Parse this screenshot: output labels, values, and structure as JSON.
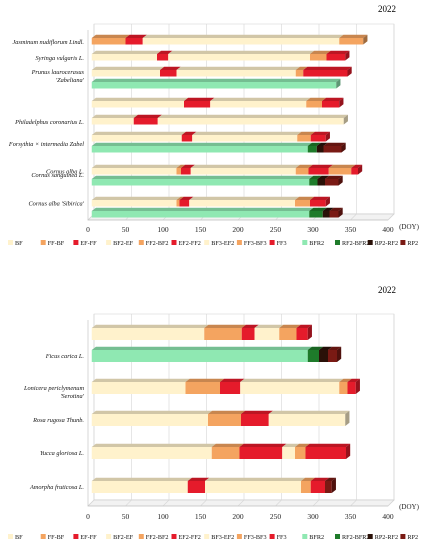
{
  "chart_data": [
    {
      "type": "bar",
      "orientation": "horizontal",
      "stacked": true,
      "year": "2022",
      "x_unit": "(DOY)",
      "xlim": [
        0,
        400
      ],
      "xticks": [
        0,
        50,
        100,
        150,
        200,
        250,
        300,
        350,
        400
      ],
      "grid": true,
      "legend_position": "bottom",
      "rows": [
        {
          "label": "Jasminum nudiflorum Lindl.",
          "lines": [
            "Jasminum nudiflorum Lindl."
          ],
          "segments": [
            [
              "FF-BF",
              5,
              50
            ],
            [
              "EF-FF",
              50,
              73
            ],
            [
              "BF2-EF",
              73,
              335
            ],
            [
              "FF2-BF2",
              335,
              367
            ]
          ]
        },
        {
          "label": "Syringa vulgaris L.",
          "lines": [
            "Syringa vulgaris L."
          ],
          "segments": [
            [
              "BF2-EF",
              5,
              92
            ],
            [
              "EF-FF",
              92,
              107
            ],
            [
              "BF2-EF",
              107,
              296
            ],
            [
              "FF2-BF2",
              296,
              318
            ],
            [
              "EF2-FF2",
              318,
              343
            ]
          ]
        },
        {
          "label": "Prunus laurocerasus 'Zabeliana'",
          "lines": [
            "Prunus laurocerasus",
            "'Zabeliana'"
          ],
          "segments": [
            [
              "BF2-EF",
              5,
              96
            ],
            [
              "EF-FF",
              96,
              118
            ],
            [
              "BF2-EF",
              118,
              277
            ],
            [
              "FF2-BF2",
              277,
              287
            ],
            [
              "EF2-FF2",
              287,
              346
            ]
          ]
        },
        {
          "label": "Prunus laurocerasus 'Zabeliana' BFR2",
          "lines": [],
          "segments": [
            [
              "BFR2",
              5,
              331
            ]
          ]
        },
        {
          "label": "Philadelphus coronarius L.",
          "lines": [
            "Philadelphus coronarius L."
          ],
          "segments": [
            [
              "BF2-EF",
              5,
              128
            ],
            [
              "EF-FF",
              128,
              163
            ],
            [
              "BF2-EF",
              163,
              291
            ],
            [
              "FF2-BF2",
              291,
              312
            ],
            [
              "EF2-FF2",
              312,
              335
            ]
          ]
        },
        {
          "label": "Forsythia × intermedia Zabel",
          "lines": [
            "Forsythia × intermedia Zabel"
          ],
          "segments": [
            [
              "BF2-EF",
              5,
              61
            ],
            [
              "EF-FF",
              61,
              93
            ],
            [
              "BF2-EF",
              93,
              341
            ]
          ]
        },
        {
          "label": "Cornus sanguinea L.",
          "lines": [
            "Cornus sanguinea L."
          ],
          "segments": [
            [
              "BF2-EF",
              5,
              125
            ],
            [
              "EF-FF",
              125,
              139
            ],
            [
              "BF2-EF",
              139,
              279
            ],
            [
              "FF2-BF2",
              279,
              297
            ],
            [
              "EF2-FF2",
              297,
              317
            ]
          ]
        },
        {
          "label": "Cornus sanguinea L. BFR2",
          "lines": [],
          "segments": [
            [
              "BFR2",
              5,
              293
            ],
            [
              "RF2-BFR2",
              293,
              305
            ],
            [
              "RP2-RF2",
              305,
              314
            ],
            [
              "RP2",
              314,
              338
            ]
          ]
        },
        {
          "label": "Cornus alba L.",
          "lines": [
            "Cornus alba L."
          ],
          "segments": [
            [
              "BF2-EF",
              5,
              118
            ],
            [
              "FF2-BF2",
              118,
              124
            ],
            [
              "EF-FF",
              124,
              137
            ],
            [
              "BF2-EF",
              137,
              277
            ],
            [
              "FF2-BF2",
              277,
              294
            ],
            [
              "EF2-FF2",
              294,
              321
            ],
            [
              "FF2-BF2",
              321,
              351
            ],
            [
              "EF2-FF2",
              351,
              360
            ]
          ]
        },
        {
          "label": "Cornus alba L. BFR2",
          "lines": [],
          "segments": [
            [
              "BFR2",
              5,
              295
            ],
            [
              "RF2-BFR2",
              295,
              306
            ],
            [
              "RP2-RF2",
              306,
              316
            ],
            [
              "RP2",
              316,
              334
            ]
          ]
        },
        {
          "label": "Cornus alba 'Sibirica'",
          "lines": [
            "Cornus alba 'Sibirica'"
          ],
          "segments": [
            [
              "BF2-EF",
              5,
              118
            ],
            [
              "FF2-BF2",
              118,
              122
            ],
            [
              "EF-FF",
              122,
              135
            ],
            [
              "BF2-EF",
              135,
              276
            ],
            [
              "FF2-BF2",
              276,
              296
            ],
            [
              "EF2-FF2",
              296,
              317
            ]
          ]
        },
        {
          "label": "Cornus alba 'Sibirica' BFR2",
          "lines": [],
          "segments": [
            [
              "BFR2",
              5,
              295
            ],
            [
              "RF2-BFR2",
              295,
              313
            ],
            [
              "RP2-RF2",
              313,
              322
            ],
            [
              "RP2",
              322,
              334
            ]
          ]
        }
      ],
      "legend": [
        "BF",
        "FF-BF",
        "EF-FF",
        "BF2-EF",
        "FF2-BF2",
        "EF2-FF2",
        "BF3-EF2",
        "FF3-BF3",
        "FF3",
        "BFR2",
        "RF2-BFR2",
        "RP2-RF2",
        "RP2"
      ]
    },
    {
      "type": "bar",
      "orientation": "horizontal",
      "stacked": true,
      "year": "2022",
      "x_unit": "(DOY)",
      "xlim": [
        0,
        400
      ],
      "xticks": [
        0,
        50,
        100,
        150,
        200,
        250,
        300,
        350,
        400
      ],
      "grid": true,
      "legend_position": "bottom",
      "rows": [
        {
          "label": "Ficus carica L.",
          "lines": [],
          "segments": [
            [
              "BF2-EF",
              5,
              155
            ],
            [
              "FF2-BF2",
              155,
              205
            ],
            [
              "EF2-FF2",
              205,
              222
            ],
            [
              "BF3-EF2",
              222,
              255
            ],
            [
              "FF3-BF3",
              255,
              278
            ],
            [
              "FF3",
              278,
              293
            ]
          ]
        },
        {
          "label": "Ficus carica L. BFR2",
          "lines": [
            "Ficus carica L."
          ],
          "segments": [
            [
              "BFR2",
              5,
              293
            ],
            [
              "RF2-BFR2",
              293,
              308
            ],
            [
              "RP2-RF2",
              308,
              320
            ],
            [
              "RP2",
              320,
              332
            ]
          ]
        },
        {
          "label": "Lonicera periclymenum 'Serotina'",
          "lines": [
            "Lonicera periclymenum",
            "'Serotina'"
          ],
          "segments": [
            [
              "BF2-EF",
              5,
              130
            ],
            [
              "FF2-BF2",
              130,
              176
            ],
            [
              "EF2-FF2",
              176,
              203
            ],
            [
              "BF3-EF2",
              203,
              335
            ],
            [
              "FF3-BF3",
              335,
              346
            ],
            [
              "FF3",
              346,
              357
            ]
          ]
        },
        {
          "label": "Rosa rugosa Thunb.",
          "lines": [
            "Rosa rugosa Thunb."
          ],
          "segments": [
            [
              "BF2-EF",
              5,
              160
            ],
            [
              "FF2-BF2",
              160,
              204
            ],
            [
              "EF2-FF2",
              204,
              241
            ],
            [
              "BF3-EF2",
              241,
              343
            ]
          ]
        },
        {
          "label": "Yucca gloriosa L.",
          "lines": [
            "Yucca gloriosa L."
          ],
          "segments": [
            [
              "BF2-EF",
              5,
              165
            ],
            [
              "FF2-BF2",
              165,
              202
            ],
            [
              "EF2-FF2",
              202,
              259
            ],
            [
              "BF3-EF2",
              259,
              276
            ],
            [
              "FF3-BF3",
              276,
              290
            ],
            [
              "FF3",
              290,
              344
            ]
          ]
        },
        {
          "label": "Amorpha fruticosa L.",
          "lines": [
            "Amorpha fruticosa L."
          ],
          "segments": [
            [
              "BF2-EF",
              5,
              133
            ],
            [
              "EF-FF",
              133,
              156
            ],
            [
              "BF2-EF",
              156,
              284
            ],
            [
              "FF2-BF2",
              284,
              297
            ],
            [
              "EF2-FF2",
              297,
              316
            ],
            [
              "RP2",
              316,
              325
            ]
          ]
        }
      ],
      "legend": [
        "BF",
        "FF-BF",
        "EF-FF",
        "BF2-EF",
        "FF2-BF2",
        "EF2-FF2",
        "BF3-EF2",
        "FF3-BF3",
        "FF3",
        "BFR2",
        "RF2-BFR2",
        "RP2-RF2",
        "RP2"
      ]
    }
  ],
  "colors": {
    "BF": "#FFF2CC",
    "FF-BF": "#F4A460",
    "EF-FF": "#E51B2B",
    "BF2-EF": "#FFF2CC",
    "FF2-BF2": "#F4A460",
    "EF2-FF2": "#E51B2B",
    "BF3-EF2": "#FFF2CC",
    "FF3-BF3": "#F4A460",
    "FF3": "#E51B2B",
    "BFR2": "#8FE8B2",
    "RF2-BFR2": "#1E7B2A",
    "RP2-RF2": "#2A1108",
    "RP2": "#7A1A14"
  }
}
